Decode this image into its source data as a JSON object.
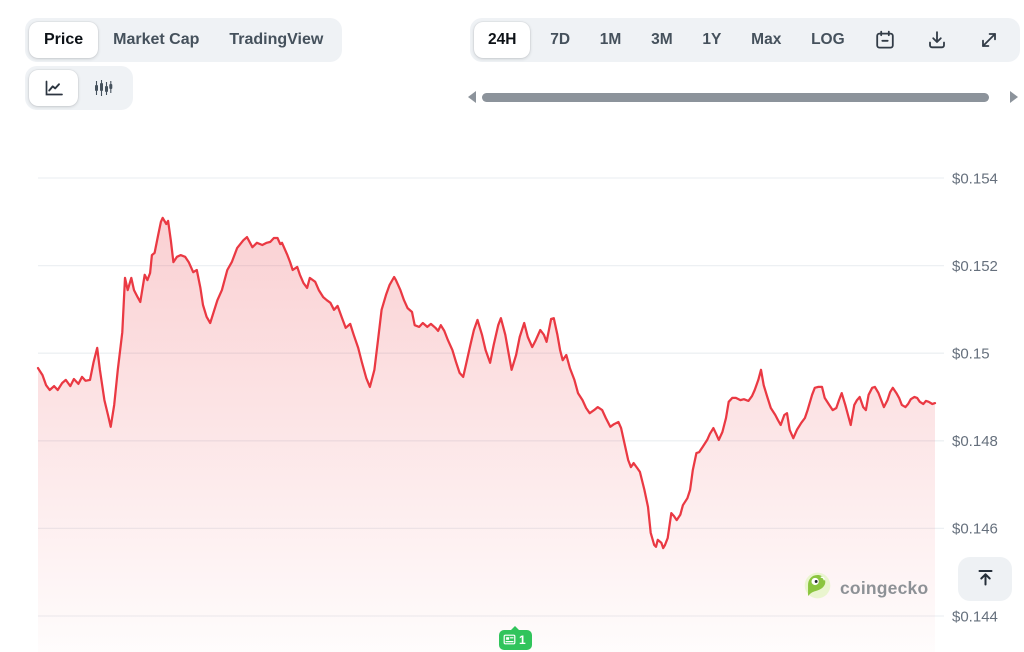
{
  "header": {
    "view_tabs": {
      "items": [
        {
          "label": "Price",
          "selected": true
        },
        {
          "label": "Market Cap",
          "selected": false
        },
        {
          "label": "TradingView",
          "selected": false
        }
      ]
    },
    "chart_type": {
      "items": [
        {
          "name": "line-chart",
          "selected": true
        },
        {
          "name": "candlestick-chart",
          "selected": false
        }
      ]
    },
    "range_tabs": {
      "items": [
        "24H",
        "7D",
        "1M",
        "3M",
        "1Y",
        "Max",
        "LOG"
      ],
      "selected": "24H"
    },
    "action_icons": [
      "calendar",
      "download",
      "fullscreen"
    ]
  },
  "watermark": {
    "label": "coingecko"
  },
  "annotation_badge": {
    "count": "1"
  },
  "colors": {
    "accent_red": "#ea3943",
    "fill_top_opacity": 0.24,
    "fill_bottom_opacity": 0.015,
    "control_bg": "#eff2f5",
    "gridline": "#edf0f3",
    "axis_label": "#66707d",
    "scrollbar": "#8c939b",
    "badge_green": "#31c45c"
  },
  "chart_data": {
    "type": "area",
    "title": "",
    "period": "24H",
    "currency": "USD",
    "x_axis": {
      "visible": false,
      "window": "24 hours",
      "unit_t": "fraction of visible window 0..1"
    },
    "y_axis": {
      "tick_labels": [
        "$0.154",
        "$0.152",
        "$0.15",
        "$0.148",
        "$0.146",
        "$0.144"
      ],
      "tick_values": [
        0.154,
        0.152,
        0.15,
        0.148,
        0.146,
        0.144
      ],
      "range": [
        0.1432,
        0.1546
      ],
      "grid": true
    },
    "points": [
      [
        0.0,
        0.14966
      ],
      [
        0.005,
        0.1495
      ],
      [
        0.009,
        0.14927
      ],
      [
        0.013,
        0.14916
      ],
      [
        0.018,
        0.14925
      ],
      [
        0.022,
        0.14916
      ],
      [
        0.027,
        0.14932
      ],
      [
        0.031,
        0.14939
      ],
      [
        0.036,
        0.14925
      ],
      [
        0.04,
        0.14941
      ],
      [
        0.045,
        0.1493
      ],
      [
        0.049,
        0.14946
      ],
      [
        0.053,
        0.14937
      ],
      [
        0.058,
        0.14939
      ],
      [
        0.062,
        0.1498
      ],
      [
        0.066,
        0.15012
      ],
      [
        0.069,
        0.14962
      ],
      [
        0.074,
        0.14893
      ],
      [
        0.078,
        0.14859
      ],
      [
        0.081,
        0.14832
      ],
      [
        0.085,
        0.14882
      ],
      [
        0.089,
        0.14962
      ],
      [
        0.094,
        0.15048
      ],
      [
        0.097,
        0.15172
      ],
      [
        0.1,
        0.15144
      ],
      [
        0.104,
        0.15172
      ],
      [
        0.107,
        0.15144
      ],
      [
        0.111,
        0.15128
      ],
      [
        0.114,
        0.15117
      ],
      [
        0.119,
        0.15179
      ],
      [
        0.122,
        0.15167
      ],
      [
        0.125,
        0.15183
      ],
      [
        0.127,
        0.15224
      ],
      [
        0.13,
        0.15229
      ],
      [
        0.134,
        0.1527
      ],
      [
        0.137,
        0.153
      ],
      [
        0.139,
        0.15309
      ],
      [
        0.143,
        0.15295
      ],
      [
        0.145,
        0.15302
      ],
      [
        0.148,
        0.15258
      ],
      [
        0.151,
        0.15208
      ],
      [
        0.155,
        0.1522
      ],
      [
        0.159,
        0.15224
      ],
      [
        0.164,
        0.1522
      ],
      [
        0.168,
        0.15208
      ],
      [
        0.173,
        0.15185
      ],
      [
        0.177,
        0.1519
      ],
      [
        0.181,
        0.15149
      ],
      [
        0.184,
        0.1511
      ],
      [
        0.188,
        0.15083
      ],
      [
        0.192,
        0.15069
      ],
      [
        0.2,
        0.15121
      ],
      [
        0.205,
        0.15144
      ],
      [
        0.211,
        0.1519
      ],
      [
        0.216,
        0.15208
      ],
      [
        0.222,
        0.1524
      ],
      [
        0.229,
        0.15258
      ],
      [
        0.233,
        0.15265
      ],
      [
        0.239,
        0.15242
      ],
      [
        0.244,
        0.15252
      ],
      [
        0.25,
        0.15247
      ],
      [
        0.255,
        0.15252
      ],
      [
        0.259,
        0.15254
      ],
      [
        0.263,
        0.15263
      ],
      [
        0.267,
        0.15263
      ],
      [
        0.27,
        0.15249
      ],
      [
        0.272,
        0.15252
      ],
      [
        0.278,
        0.15224
      ],
      [
        0.281,
        0.15208
      ],
      [
        0.284,
        0.1519
      ],
      [
        0.289,
        0.15197
      ],
      [
        0.292,
        0.15179
      ],
      [
        0.296,
        0.1516
      ],
      [
        0.3,
        0.15149
      ],
      [
        0.303,
        0.15172
      ],
      [
        0.309,
        0.15163
      ],
      [
        0.313,
        0.15144
      ],
      [
        0.318,
        0.15128
      ],
      [
        0.322,
        0.15121
      ],
      [
        0.326,
        0.15115
      ],
      [
        0.33,
        0.15099
      ],
      [
        0.334,
        0.15108
      ],
      [
        0.339,
        0.1508
      ],
      [
        0.343,
        0.15058
      ],
      [
        0.348,
        0.15067
      ],
      [
        0.352,
        0.15042
      ],
      [
        0.357,
        0.15012
      ],
      [
        0.361,
        0.1498
      ],
      [
        0.366,
        0.14943
      ],
      [
        0.37,
        0.14923
      ],
      [
        0.375,
        0.14962
      ],
      [
        0.379,
        0.1503
      ],
      [
        0.383,
        0.15099
      ],
      [
        0.388,
        0.15133
      ],
      [
        0.392,
        0.15156
      ],
      [
        0.397,
        0.15174
      ],
      [
        0.399,
        0.15167
      ],
      [
        0.404,
        0.15144
      ],
      [
        0.408,
        0.15121
      ],
      [
        0.412,
        0.15103
      ],
      [
        0.417,
        0.15094
      ],
      [
        0.42,
        0.15064
      ],
      [
        0.425,
        0.1506
      ],
      [
        0.429,
        0.15069
      ],
      [
        0.434,
        0.1506
      ],
      [
        0.438,
        0.15067
      ],
      [
        0.443,
        0.15058
      ],
      [
        0.446,
        0.15051
      ],
      [
        0.449,
        0.15064
      ],
      [
        0.453,
        0.15051
      ],
      [
        0.457,
        0.1503
      ],
      [
        0.462,
        0.15007
      ],
      [
        0.466,
        0.1498
      ],
      [
        0.47,
        0.14955
      ],
      [
        0.474,
        0.14946
      ],
      [
        0.477,
        0.14973
      ],
      [
        0.482,
        0.15019
      ],
      [
        0.486,
        0.15053
      ],
      [
        0.49,
        0.15076
      ],
      [
        0.495,
        0.15042
      ],
      [
        0.499,
        0.15007
      ],
      [
        0.504,
        0.14978
      ],
      [
        0.508,
        0.15019
      ],
      [
        0.513,
        0.15064
      ],
      [
        0.516,
        0.1508
      ],
      [
        0.521,
        0.15042
      ],
      [
        0.525,
        0.14996
      ],
      [
        0.528,
        0.14962
      ],
      [
        0.533,
        0.14996
      ],
      [
        0.537,
        0.15037
      ],
      [
        0.542,
        0.15069
      ],
      [
        0.546,
        0.15037
      ],
      [
        0.551,
        0.15014
      ],
      [
        0.555,
        0.1503
      ],
      [
        0.56,
        0.15053
      ],
      [
        0.564,
        0.15042
      ],
      [
        0.567,
        0.15026
      ],
      [
        0.572,
        0.15078
      ],
      [
        0.575,
        0.1508
      ],
      [
        0.579,
        0.15042
      ],
      [
        0.582,
        0.15007
      ],
      [
        0.585,
        0.14984
      ],
      [
        0.589,
        0.14996
      ],
      [
        0.593,
        0.14966
      ],
      [
        0.598,
        0.14939
      ],
      [
        0.602,
        0.14909
      ],
      [
        0.607,
        0.14893
      ],
      [
        0.611,
        0.14875
      ],
      [
        0.615,
        0.14863
      ],
      [
        0.62,
        0.1487
      ],
      [
        0.624,
        0.14877
      ],
      [
        0.629,
        0.1487
      ],
      [
        0.633,
        0.14852
      ],
      [
        0.638,
        0.14832
      ],
      [
        0.642,
        0.14838
      ],
      [
        0.647,
        0.14843
      ],
      [
        0.65,
        0.14829
      ],
      [
        0.653,
        0.14802
      ],
      [
        0.658,
        0.14756
      ],
      [
        0.661,
        0.1474
      ],
      [
        0.664,
        0.14749
      ],
      [
        0.668,
        0.14738
      ],
      [
        0.671,
        0.14729
      ],
      [
        0.676,
        0.14688
      ],
      [
        0.68,
        0.14649
      ],
      [
        0.683,
        0.1459
      ],
      [
        0.687,
        0.14562
      ],
      [
        0.689,
        0.14558
      ],
      [
        0.691,
        0.14574
      ],
      [
        0.695,
        0.14567
      ],
      [
        0.697,
        0.14555
      ],
      [
        0.699,
        0.14562
      ],
      [
        0.702,
        0.14578
      ],
      [
        0.706,
        0.14635
      ],
      [
        0.709,
        0.14628
      ],
      [
        0.712,
        0.14619
      ],
      [
        0.716,
        0.14631
      ],
      [
        0.719,
        0.14653
      ],
      [
        0.724,
        0.14669
      ],
      [
        0.727,
        0.14688
      ],
      [
        0.73,
        0.14733
      ],
      [
        0.734,
        0.14772
      ],
      [
        0.737,
        0.14774
      ],
      [
        0.741,
        0.14786
      ],
      [
        0.746,
        0.14802
      ],
      [
        0.749,
        0.14816
      ],
      [
        0.753,
        0.14829
      ],
      [
        0.756,
        0.14816
      ],
      [
        0.759,
        0.14802
      ],
      [
        0.763,
        0.1482
      ],
      [
        0.767,
        0.14852
      ],
      [
        0.77,
        0.14889
      ],
      [
        0.774,
        0.14898
      ],
      [
        0.778,
        0.14898
      ],
      [
        0.783,
        0.14893
      ],
      [
        0.787,
        0.14895
      ],
      [
        0.792,
        0.14891
      ],
      [
        0.796,
        0.14902
      ],
      [
        0.799,
        0.14916
      ],
      [
        0.803,
        0.14939
      ],
      [
        0.806,
        0.14962
      ],
      [
        0.809,
        0.14927
      ],
      [
        0.813,
        0.149
      ],
      [
        0.817,
        0.14875
      ],
      [
        0.822,
        0.14859
      ],
      [
        0.825,
        0.14847
      ],
      [
        0.828,
        0.14836
      ],
      [
        0.832,
        0.14859
      ],
      [
        0.835,
        0.14863
      ],
      [
        0.838,
        0.14825
      ],
      [
        0.842,
        0.14806
      ],
      [
        0.846,
        0.14825
      ],
      [
        0.851,
        0.14841
      ],
      [
        0.855,
        0.14852
      ],
      [
        0.858,
        0.1487
      ],
      [
        0.863,
        0.14905
      ],
      [
        0.866,
        0.14921
      ],
      [
        0.87,
        0.14923
      ],
      [
        0.874,
        0.14923
      ],
      [
        0.877,
        0.14898
      ],
      [
        0.882,
        0.14882
      ],
      [
        0.886,
        0.1487
      ],
      [
        0.89,
        0.14875
      ],
      [
        0.893,
        0.14893
      ],
      [
        0.896,
        0.14909
      ],
      [
        0.9,
        0.14882
      ],
      [
        0.903,
        0.14859
      ],
      [
        0.906,
        0.14836
      ],
      [
        0.91,
        0.14882
      ],
      [
        0.913,
        0.14893
      ],
      [
        0.916,
        0.149
      ],
      [
        0.92,
        0.14877
      ],
      [
        0.923,
        0.1487
      ],
      [
        0.926,
        0.14905
      ],
      [
        0.93,
        0.14921
      ],
      [
        0.933,
        0.14923
      ],
      [
        0.937,
        0.14909
      ],
      [
        0.94,
        0.14893
      ],
      [
        0.943,
        0.14877
      ],
      [
        0.947,
        0.14893
      ],
      [
        0.95,
        0.14911
      ],
      [
        0.953,
        0.14921
      ],
      [
        0.957,
        0.14909
      ],
      [
        0.96,
        0.14898
      ],
      [
        0.963,
        0.14882
      ],
      [
        0.967,
        0.14877
      ],
      [
        0.97,
        0.14884
      ],
      [
        0.973,
        0.14895
      ],
      [
        0.977,
        0.149
      ],
      [
        0.98,
        0.14898
      ],
      [
        0.983,
        0.14889
      ],
      [
        0.987,
        0.14884
      ],
      [
        0.99,
        0.14891
      ],
      [
        0.993,
        0.14889
      ],
      [
        0.997,
        0.14884
      ],
      [
        1.0,
        0.14886
      ]
    ]
  }
}
